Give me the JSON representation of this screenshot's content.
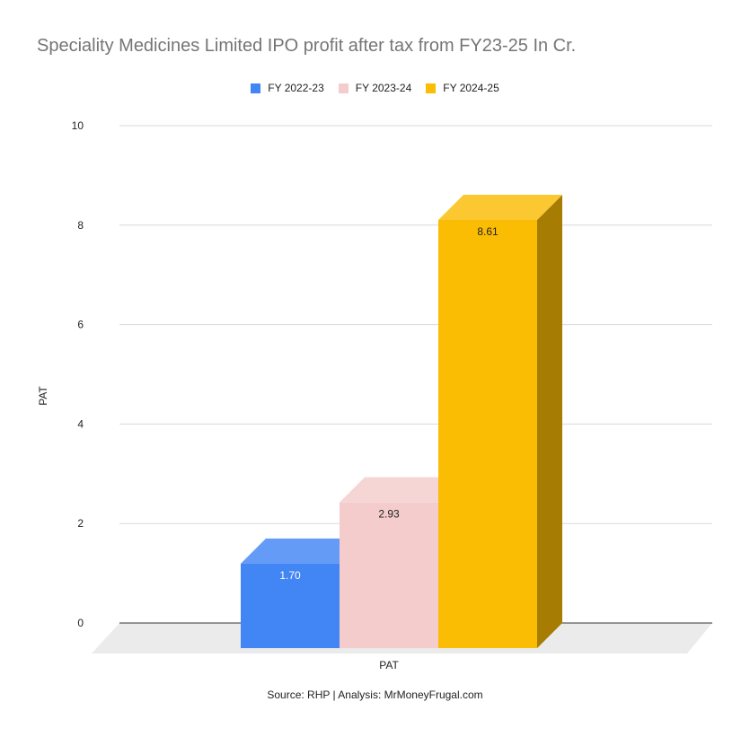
{
  "chart_data": {
    "type": "bar",
    "title": "Speciality Medicines Limited IPO profit after tax from FY23-25 In Cr.",
    "categories": [
      "PAT"
    ],
    "series": [
      {
        "name": "FY 2022-23",
        "values": [
          1.7
        ],
        "label": "1.70",
        "color": "#4285f4",
        "label_color": "#ffffff"
      },
      {
        "name": "FY 2023-24",
        "values": [
          2.93
        ],
        "label": "2.93",
        "color": "#f4cccc",
        "label_color": "#222222"
      },
      {
        "name": "FY 2024-25",
        "values": [
          8.61
        ],
        "label": "8.61",
        "color": "#fbbc04",
        "label_color": "#222222"
      }
    ],
    "xlabel": "PAT",
    "ylabel": "PAT",
    "ylim": [
      0,
      10
    ],
    "yticks": [
      "0",
      "2",
      "4",
      "6",
      "8",
      "10"
    ],
    "grid": true,
    "legend_position": "top",
    "style": "3d"
  },
  "footer": {
    "source": "Source: RHP | Analysis: MrMoneyFrugal.com"
  }
}
